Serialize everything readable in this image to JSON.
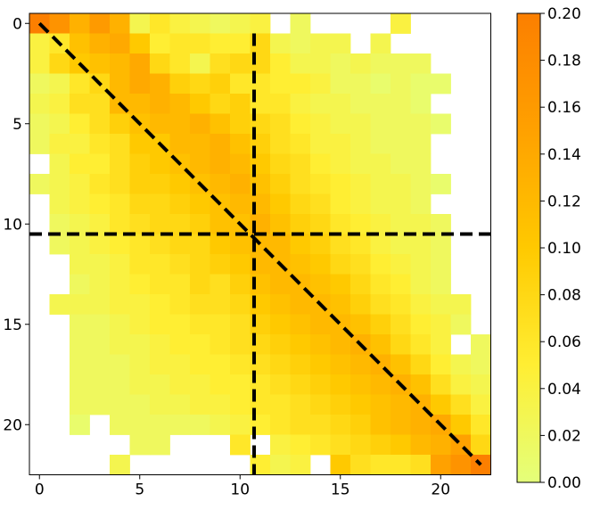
{
  "chart_data": {
    "type": "heatmap",
    "title": "",
    "xlabel": "",
    "ylabel": "",
    "rows": 23,
    "cols": 23,
    "x_ticks": [
      0,
      5,
      10,
      15,
      20
    ],
    "y_ticks": [
      0,
      5,
      10,
      15,
      20
    ],
    "colorbar": {
      "min": 0.0,
      "max": 0.2,
      "ticks": [
        "0.00",
        "0.02",
        "0.04",
        "0.06",
        "0.08",
        "0.10",
        "0.12",
        "0.14",
        "0.16",
        "0.18",
        "0.20"
      ],
      "colormap": "Wistia",
      "low_color": "#e4ff7a",
      "high_color": "#fc7f00"
    },
    "empty_cell_color": "#ffffff",
    "values": [
      [
        0.2,
        0.17,
        0.13,
        0.16,
        0.13,
        0.03,
        0.06,
        0.04,
        0.03,
        0.02,
        0.03,
        0.04,
        null,
        0.02,
        null,
        null,
        null,
        null,
        0.04,
        null,
        null,
        null,
        null
      ],
      [
        0.04,
        0.06,
        0.11,
        0.13,
        0.14,
        0.1,
        0.05,
        0.06,
        0.06,
        0.05,
        0.05,
        0.08,
        0.03,
        0.02,
        0.03,
        0.03,
        null,
        0.03,
        null,
        null,
        null,
        null,
        null
      ],
      [
        0.04,
        0.08,
        0.1,
        0.11,
        0.12,
        0.14,
        0.08,
        0.06,
        0.03,
        0.07,
        0.08,
        0.08,
        0.05,
        0.03,
        0.03,
        0.02,
        0.03,
        0.02,
        0.02,
        0.02,
        null,
        null,
        null
      ],
      [
        0.02,
        0.03,
        0.06,
        0.08,
        0.12,
        0.14,
        0.13,
        0.09,
        0.08,
        0.09,
        0.06,
        0.06,
        0.05,
        0.05,
        0.04,
        0.02,
        0.02,
        0.01,
        0.02,
        0.01,
        0.01,
        null,
        null
      ],
      [
        0.03,
        0.04,
        0.07,
        0.07,
        0.12,
        0.12,
        0.13,
        0.12,
        0.1,
        0.08,
        0.09,
        0.06,
        0.06,
        0.04,
        0.03,
        0.03,
        0.02,
        0.02,
        0.02,
        0.01,
        null,
        null,
        null
      ],
      [
        0.02,
        0.03,
        0.05,
        0.07,
        0.09,
        0.11,
        0.12,
        0.12,
        0.13,
        0.11,
        0.09,
        0.08,
        0.07,
        0.05,
        0.04,
        0.03,
        0.03,
        0.02,
        0.02,
        0.02,
        0.01,
        null,
        null
      ],
      [
        0.02,
        0.04,
        0.04,
        0.06,
        0.07,
        0.1,
        0.1,
        0.12,
        0.12,
        0.13,
        0.11,
        0.09,
        0.07,
        0.06,
        0.04,
        0.04,
        0.03,
        0.02,
        0.02,
        0.02,
        null,
        null,
        null
      ],
      [
        null,
        0.03,
        0.05,
        0.05,
        0.07,
        0.09,
        0.1,
        0.11,
        0.12,
        0.13,
        0.12,
        0.1,
        0.08,
        0.07,
        0.05,
        0.04,
        0.03,
        0.03,
        0.02,
        0.02,
        null,
        null,
        null
      ],
      [
        0.02,
        0.03,
        0.04,
        0.06,
        0.07,
        0.09,
        0.09,
        0.1,
        0.11,
        0.12,
        0.13,
        0.11,
        0.09,
        0.07,
        0.06,
        0.05,
        0.04,
        0.03,
        0.03,
        0.02,
        0.01,
        null,
        null
      ],
      [
        null,
        0.03,
        0.04,
        0.05,
        0.06,
        0.08,
        0.08,
        0.09,
        0.1,
        0.11,
        0.12,
        0.12,
        0.1,
        0.08,
        0.07,
        0.05,
        0.04,
        0.03,
        0.03,
        0.02,
        null,
        null,
        null
      ],
      [
        null,
        0.02,
        0.03,
        0.04,
        0.06,
        0.07,
        0.08,
        0.08,
        0.09,
        0.11,
        0.11,
        0.13,
        0.11,
        0.09,
        0.08,
        0.06,
        0.05,
        0.04,
        0.03,
        0.03,
        0.02,
        null,
        null
      ],
      [
        null,
        0.02,
        0.03,
        0.04,
        0.05,
        0.06,
        0.07,
        0.08,
        0.08,
        0.1,
        0.11,
        0.12,
        0.12,
        0.1,
        0.09,
        0.07,
        0.06,
        0.04,
        0.03,
        0.03,
        0.02,
        null,
        null
      ],
      [
        null,
        null,
        0.03,
        0.03,
        0.04,
        0.06,
        0.06,
        0.07,
        0.08,
        0.09,
        0.1,
        0.12,
        0.12,
        0.11,
        0.1,
        0.08,
        0.07,
        0.05,
        0.04,
        0.03,
        0.02,
        null,
        null
      ],
      [
        null,
        null,
        0.02,
        0.03,
        0.04,
        0.05,
        0.06,
        0.06,
        0.08,
        0.07,
        0.09,
        0.11,
        0.12,
        0.12,
        0.11,
        0.1,
        0.08,
        0.06,
        0.05,
        0.03,
        0.02,
        null,
        null
      ],
      [
        null,
        0.03,
        0.03,
        0.03,
        0.04,
        0.04,
        0.05,
        0.06,
        0.07,
        0.07,
        0.08,
        0.1,
        0.11,
        0.12,
        0.12,
        0.11,
        0.09,
        0.07,
        0.06,
        0.04,
        0.03,
        0.03,
        null
      ],
      [
        null,
        null,
        0.02,
        0.02,
        0.03,
        0.04,
        0.05,
        0.05,
        0.06,
        0.06,
        0.07,
        0.09,
        0.1,
        0.11,
        0.12,
        0.12,
        0.11,
        0.09,
        0.07,
        0.05,
        0.04,
        0.02,
        null
      ],
      [
        null,
        null,
        0.02,
        0.02,
        0.03,
        0.03,
        0.04,
        0.05,
        0.05,
        0.06,
        0.07,
        0.08,
        0.09,
        0.1,
        0.11,
        0.12,
        0.13,
        0.11,
        0.08,
        0.06,
        0.04,
        null,
        0.02
      ],
      [
        null,
        null,
        0.02,
        0.02,
        0.02,
        0.03,
        0.04,
        0.04,
        0.05,
        0.05,
        0.06,
        0.07,
        0.08,
        0.09,
        0.1,
        0.11,
        0.12,
        0.13,
        0.11,
        0.08,
        0.05,
        0.03,
        0.02
      ],
      [
        null,
        null,
        0.02,
        0.02,
        0.02,
        0.03,
        0.03,
        0.04,
        0.04,
        0.05,
        0.05,
        0.06,
        0.07,
        0.08,
        0.09,
        0.1,
        0.11,
        0.12,
        0.13,
        0.11,
        0.07,
        0.04,
        0.03
      ],
      [
        null,
        null,
        0.02,
        0.02,
        0.02,
        0.02,
        0.03,
        0.03,
        0.04,
        0.04,
        0.05,
        0.06,
        0.06,
        0.07,
        0.08,
        0.09,
        0.1,
        0.11,
        0.12,
        0.13,
        0.1,
        0.07,
        0.04
      ],
      [
        null,
        null,
        0.01,
        null,
        0.02,
        0.02,
        0.02,
        0.02,
        0.02,
        0.03,
        0.04,
        0.05,
        0.06,
        0.07,
        0.07,
        0.08,
        0.09,
        0.11,
        0.12,
        0.13,
        0.14,
        0.1,
        0.06
      ],
      [
        null,
        null,
        null,
        null,
        null,
        0.02,
        0.02,
        null,
        null,
        null,
        0.06,
        null,
        0.04,
        0.05,
        0.06,
        0.07,
        0.08,
        0.09,
        0.1,
        0.12,
        0.13,
        0.15,
        0.08
      ],
      [
        null,
        null,
        null,
        null,
        0.03,
        null,
        null,
        null,
        null,
        null,
        null,
        0.05,
        0.03,
        0.04,
        null,
        0.1,
        0.07,
        0.06,
        0.06,
        0.07,
        0.15,
        0.17,
        0.2
      ]
    ],
    "annotations": {
      "diagonal_line": {
        "from": [
          0,
          0
        ],
        "to": [
          22,
          22
        ],
        "style": "dashed",
        "color": "#000000"
      },
      "vertical_line": {
        "x": 10.7,
        "y_range": [
          0.5,
          22.5
        ],
        "style": "dashed",
        "color": "#000000"
      },
      "horizontal_line": {
        "y": 10.5,
        "x_range": [
          -0.5,
          22.5
        ],
        "style": "dashed",
        "color": "#000000"
      }
    }
  }
}
